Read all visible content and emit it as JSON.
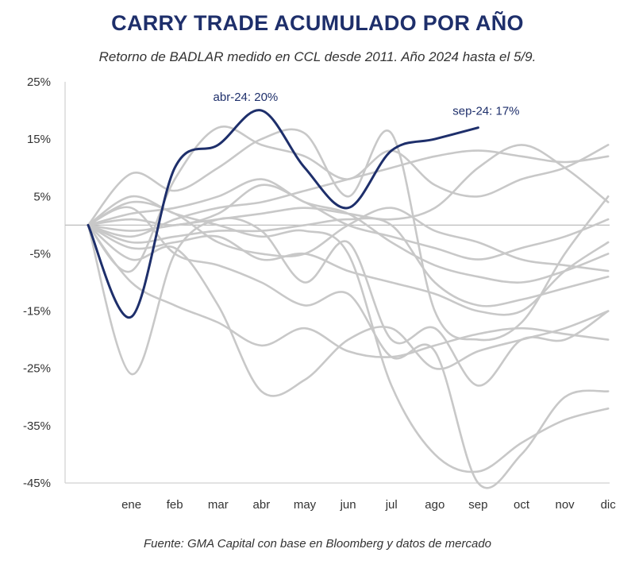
{
  "title": "CARRY TRADE ACUMULADO POR AÑO",
  "subtitle": "Retorno de BADLAR medido en CCL desde 2011. Año 2024 hasta el 5/9.",
  "source": "Fuente: GMA Capital con base en Bloomberg y datos de mercado",
  "colors": {
    "highlight": "#1e2f6b",
    "background_series": "#c8c8c8",
    "zero_line": "#bdbdbd",
    "axis": "#d0d0d0"
  },
  "chart_data": {
    "type": "line",
    "x_categories": [
      "ene",
      "feb",
      "mar",
      "abr",
      "may",
      "jun",
      "jul",
      "ago",
      "sep",
      "oct",
      "nov",
      "dic"
    ],
    "y_tick_labels": [
      "25%",
      "15%",
      "5%",
      "-5%",
      "-15%",
      "-25%",
      "-35%",
      "-45%"
    ],
    "y_ticks": [
      25,
      15,
      5,
      -5,
      -15,
      -25,
      -35,
      -45
    ],
    "ylim": [
      -45,
      25
    ],
    "zero_line": true,
    "highlight_series": {
      "year": "2024",
      "x": [
        "start",
        "ene",
        "feb",
        "mar",
        "abr",
        "may",
        "jun",
        "jul",
        "ago",
        "sep"
      ],
      "values": [
        0,
        -16,
        10,
        14,
        20,
        10,
        3,
        13,
        15,
        17
      ]
    },
    "other_series": [
      {
        "values": [
          0,
          -26,
          -5,
          1,
          -1,
          -10,
          -3,
          -20,
          -18,
          -28,
          -20,
          -20,
          -15
        ]
      },
      {
        "values": [
          0,
          -10,
          -14,
          -17,
          -21,
          -18,
          -22,
          -23,
          -21,
          -19,
          -18,
          -19,
          -20
        ]
      },
      {
        "values": [
          0,
          -8,
          8,
          17,
          14,
          12,
          8,
          13,
          7,
          5,
          8,
          10,
          14
        ]
      },
      {
        "values": [
          0,
          9,
          6,
          10,
          15,
          16,
          5,
          16,
          -15,
          -20,
          -17,
          -5,
          5
        ]
      },
      {
        "values": [
          0,
          3,
          -5,
          -7,
          -10,
          -14,
          -12,
          -23,
          -22,
          -45,
          -40,
          -30,
          -29
        ]
      },
      {
        "values": [
          0,
          5,
          2,
          0,
          -2,
          -1,
          -5,
          -28,
          -40,
          -43,
          -38,
          -34,
          -32
        ]
      },
      {
        "values": [
          0,
          -6,
          -4,
          -14,
          -29,
          -27,
          -20,
          -18,
          -25,
          -22,
          -20,
          -18,
          -15
        ]
      },
      {
        "values": [
          0,
          -3,
          -2,
          -1,
          -1,
          0,
          1,
          0,
          -10,
          -14,
          -13,
          -11,
          -9
        ]
      },
      {
        "values": [
          0,
          2,
          3,
          5,
          8,
          4,
          2,
          -3,
          -7,
          -9,
          -10,
          -8,
          -5
        ]
      },
      {
        "values": [
          0,
          -1,
          0,
          1,
          2,
          3,
          2,
          1,
          3,
          10,
          14,
          10,
          4
        ]
      },
      {
        "values": [
          0,
          1,
          0,
          2,
          7,
          4,
          0,
          -2,
          -4,
          -6,
          -4,
          -2,
          1
        ]
      },
      {
        "values": [
          0,
          -4,
          -3,
          -2,
          -6,
          -5,
          -8,
          -10,
          -12,
          -15,
          -15,
          -8,
          -3
        ]
      },
      {
        "values": [
          0,
          -2,
          1,
          3,
          4,
          6,
          8,
          10,
          12,
          13,
          12,
          11,
          12
        ]
      },
      {
        "values": [
          0,
          4,
          2,
          -3,
          -5,
          -5,
          0,
          3,
          -1,
          -3,
          -6,
          -7,
          -8
        ]
      }
    ],
    "annotations": [
      {
        "text": "abr-24: 20%",
        "x": "abr",
        "y": 20
      },
      {
        "text": "sep-24: 17%",
        "x": "sep",
        "y": 17
      }
    ]
  }
}
